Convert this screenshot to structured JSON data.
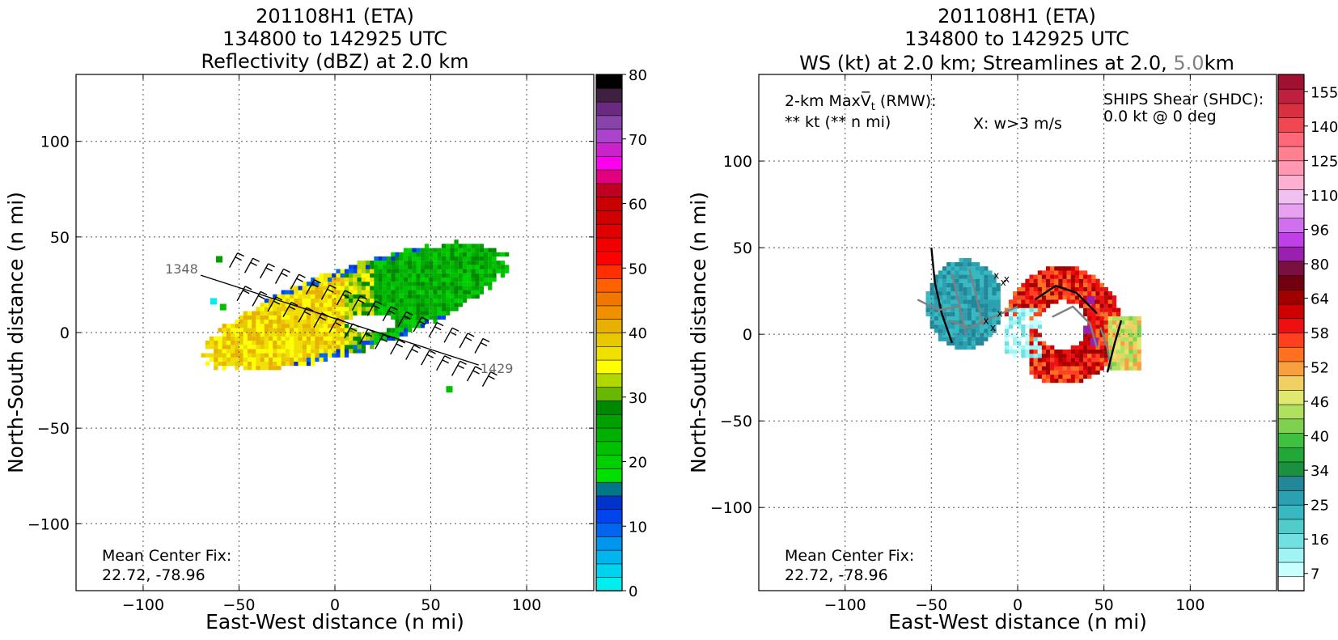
{
  "chart_data": [
    {
      "type": "heatmap",
      "title_lines": [
        "201108H1 (ETA)",
        "134800 to 142925 UTC",
        "Reflectivity (dBZ) at 2.0 km"
      ],
      "xlabel": "East-West distance (n mi)",
      "ylabel": "North-South distance (n mi)",
      "xlim": [
        -135,
        135
      ],
      "ylim": [
        -135,
        135
      ],
      "xticks": [
        -100,
        -50,
        0,
        50,
        100
      ],
      "yticks": [
        -100,
        -50,
        0,
        50,
        100
      ],
      "grid": true,
      "colorbar": {
        "ticks": [
          0,
          10,
          20,
          30,
          40,
          50,
          60,
          70,
          80
        ],
        "colors": [
          "#00eeee",
          "#00d3ee",
          "#00b5ee",
          "#0096ee",
          "#0066ee",
          "#0044ee",
          "#0033cc",
          "#007788",
          "#00e000",
          "#00d000",
          "#00c000",
          "#00b000",
          "#00a000",
          "#008800",
          "#68b800",
          "#b0d800",
          "#ffff00",
          "#f0e000",
          "#e8c800",
          "#e8b000",
          "#f09000",
          "#f07800",
          "#ff6000",
          "#ff3000",
          "#ff0000",
          "#f00000",
          "#e00000",
          "#d00000",
          "#c80000",
          "#c00020",
          "#e00080",
          "#ff00ee",
          "#cc22cc",
          "#aa44cc",
          "#8844aa",
          "#6a2a80",
          "#402040",
          "#000000"
        ]
      },
      "flight_track": {
        "start_label": "1348",
        "end_label": "1429",
        "from": [
          -70,
          30
        ],
        "to": [
          75,
          -17
        ]
      },
      "annotation": {
        "line1": "Mean Center Fix:",
        "line2": "22.72, -78.96"
      },
      "center": [
        0,
        0
      ]
    },
    {
      "type": "heatmap",
      "title_lines": [
        "201108H1 (ETA)",
        "134800 to 142925 UTC"
      ],
      "title_line3_parts": {
        "a": "WS (kt) at 2.0 km; Streamlines at 2.0, ",
        "b": "5.0",
        "c": "km"
      },
      "title_line3_colors": {
        "b": "#808080"
      },
      "xlabel": "East-West distance (n mi)",
      "ylabel": "North-South distance (n mi)",
      "xlim": [
        -150,
        150
      ],
      "ylim": [
        -148,
        150
      ],
      "xticks": [
        -100,
        -50,
        0,
        50,
        100
      ],
      "yticks": [
        -100,
        -50,
        0,
        50,
        100
      ],
      "grid": true,
      "colorbar": {
        "ticks": [
          7,
          16,
          25,
          34,
          40,
          46,
          52,
          58,
          64,
          80,
          96,
          110,
          125,
          140,
          155
        ],
        "colors": [
          "#ffffff",
          "#c8ffff",
          "#a0f4f4",
          "#70e0e0",
          "#50cccc",
          "#38b8c0",
          "#2aa0b0",
          "#228899",
          "#1a9040",
          "#22a838",
          "#40c040",
          "#80d050",
          "#b0e060",
          "#e0e870",
          "#f0d060",
          "#f8a040",
          "#ff7020",
          "#ff4020",
          "#ee1010",
          "#d00000",
          "#a00000",
          "#700010",
          "#7a1040",
          "#9a20b0",
          "#c040e8",
          "#d070f0",
          "#e8a0f0",
          "#f0c0f0",
          "#ffb0d0",
          "#ff98b0",
          "#ff8090",
          "#ff6878",
          "#f04850",
          "#d83040",
          "#c02040",
          "#a01030"
        ]
      },
      "max_vt_label": "2-km MaxV̅",
      "max_vt_sub": "t",
      "max_vt_suffix": " (RMW):",
      "max_vt_value": "** kt (** n mi)",
      "w_label": "X: w>3 m/s",
      "shear_line1": "SHIPS Shear (SHDC):",
      "shear_line2": "0.0 kt @ 0 deg",
      "shear_color": "#008800",
      "annotation": {
        "line1": "Mean Center Fix:",
        "line2": "22.72, -78.96"
      }
    }
  ]
}
